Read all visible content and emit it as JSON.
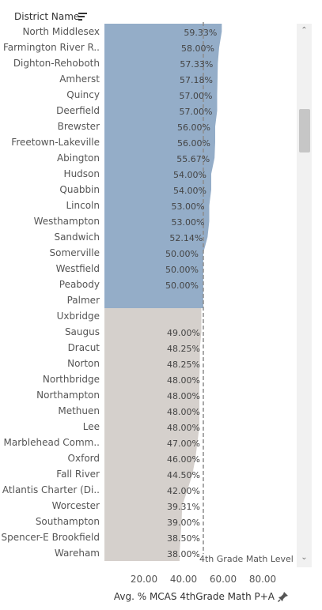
{
  "header": {
    "title": "District Name"
  },
  "axis": {
    "title": "Avg. % MCAS 4thGrade Math P+A"
  },
  "reference_line": {
    "label": "4th Grade Math Level",
    "value": 50
  },
  "colors": {
    "above": "#94adc8",
    "below": "#d5d0cc",
    "reference": "#8c8c8c"
  },
  "chart_data": {
    "type": "bar",
    "orientation": "horizontal",
    "title": "",
    "ylabel": "District Name",
    "xlabel": "Avg. % MCAS 4thGrade Math P+A",
    "xlim": [
      0,
      100
    ],
    "x_ticks": [
      "20.00",
      "40.00",
      "60.00",
      "80.00"
    ],
    "x_tick_values": [
      20,
      40,
      60,
      80
    ],
    "reference_value": 50,
    "categories": [
      "North Middlesex",
      "Farmington River R..",
      "Dighton-Rehoboth",
      "Amherst",
      "Quincy",
      "Deerfield",
      "Brewster",
      "Freetown-Lakeville",
      "Abington",
      "Hudson",
      "Quabbin",
      "Lincoln",
      "Westhampton",
      "Sandwich",
      "Somerville",
      "Westfield",
      "Peabody",
      "Palmer",
      "Uxbridge",
      "Saugus",
      "Dracut",
      "Norton",
      "Northbridge",
      "Northampton",
      "Methuen",
      "Lee",
      "Marblehead Comm..",
      "Oxford",
      "Fall River",
      "Atlantis Charter (Di..",
      "Worcester",
      "Southampton",
      "Spencer-E Brookfield",
      "Wareham"
    ],
    "values": [
      59.33,
      58.0,
      57.33,
      57.18,
      57.0,
      57.0,
      56.0,
      56.0,
      55.67,
      54.0,
      54.0,
      53.0,
      53.0,
      52.14,
      50.0,
      50.0,
      50.0,
      null,
      null,
      49.0,
      48.25,
      48.25,
      48.0,
      48.0,
      48.0,
      48.0,
      47.0,
      46.0,
      44.5,
      42.0,
      39.31,
      39.0,
      38.5,
      38.0
    ],
    "labels": [
      "59.33%",
      "58.00%",
      "57.33%",
      "57.18%",
      "57.00%",
      "57.00%",
      "56.00%",
      "56.00%",
      "55.67%",
      "54.00%",
      "54.00%",
      "53.00%",
      "53.00%",
      "52.14%",
      "50.00%",
      "50.00%",
      "50.00%",
      "",
      "",
      "49.00%",
      "48.25%",
      "48.25%",
      "48.00%",
      "48.00%",
      "48.00%",
      "48.00%",
      "47.00%",
      "46.00%",
      "44.50%",
      "42.00%",
      "39.31%",
      "39.00%",
      "38.50%",
      "38.00%"
    ]
  }
}
